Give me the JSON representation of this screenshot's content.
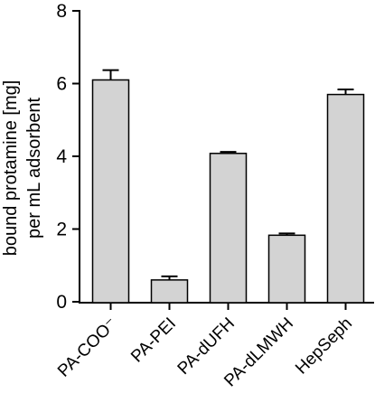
{
  "chart_data": {
    "type": "bar",
    "categories": [
      "PA-COO⁻",
      "PA-PEI",
      "PA-dUFH",
      "PA-dLMWH",
      "HepSeph"
    ],
    "values": [
      6.1,
      0.6,
      4.08,
      1.83,
      5.7
    ],
    "errors": [
      0.27,
      0.1,
      0.04,
      0.05,
      0.14
    ],
    "ylabel_line1": "bound protamine [mg]",
    "ylabel_line2": "per mL adsorbent",
    "xlabel": "",
    "title": "",
    "ylim": [
      0,
      8
    ],
    "yticks": [
      0,
      2,
      4,
      6,
      8
    ],
    "bar_color": "#d3d3d3",
    "edge_color": "#000000",
    "grid": false,
    "error_bars": "upper"
  }
}
